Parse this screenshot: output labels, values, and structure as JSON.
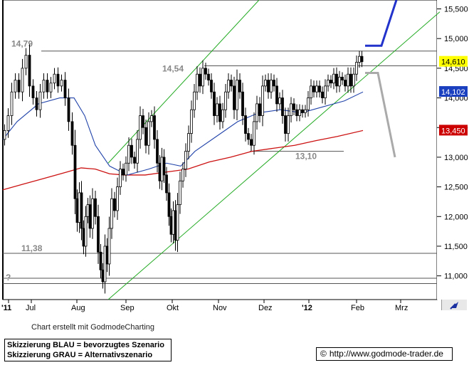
{
  "chart_data": {
    "type": "candlestick",
    "instrument": "",
    "x_labels": [
      "'11",
      "Jul",
      "Aug",
      "Sep",
      "Okt",
      "Nov",
      "Dez",
      "'12",
      "Feb",
      "Mrz"
    ],
    "y_ticks": [
      "15,500",
      "15,000",
      "14,500",
      "14,000",
      "13,500",
      "13,000",
      "12,500",
      "12,000",
      "11,500",
      "11,000"
    ],
    "ylim": [
      10.6,
      15.65
    ],
    "price_tags": [
      {
        "value": 14.61,
        "label": "14,610",
        "color": "#ffff00",
        "text_color": "#000000"
      },
      {
        "value": 14.102,
        "label": "14,102",
        "color": "#1a3fbf",
        "text_color": "#ffffff"
      },
      {
        "value": 13.45,
        "label": "13,450",
        "color": "#cc0000",
        "text_color": "#ffffff"
      }
    ],
    "horizontal_levels": [
      {
        "value": 14.79,
        "label": "14,79"
      },
      {
        "value": 14.54,
        "label": "14,54"
      },
      {
        "value": 13.1,
        "label": "13,10"
      },
      {
        "value": 11.38,
        "label": "11,38"
      },
      {
        "value": 10.96,
        "label": "?"
      },
      {
        "value": 10.87,
        "label": ""
      }
    ],
    "close_series": [
      {
        "d": 0,
        "v": 13.3
      },
      {
        "d": 5,
        "v": 13.45
      },
      {
        "d": 10,
        "v": 13.7
      },
      {
        "d": 15,
        "v": 14.1
      },
      {
        "d": 20,
        "v": 14.3
      },
      {
        "d": 25,
        "v": 14.1
      },
      {
        "d": 30,
        "v": 14.5
      },
      {
        "d": 35,
        "v": 14.72
      },
      {
        "d": 40,
        "v": 14.2
      },
      {
        "d": 45,
        "v": 14.0
      },
      {
        "d": 50,
        "v": 13.8
      },
      {
        "d": 55,
        "v": 14.1
      },
      {
        "d": 60,
        "v": 14.3
      },
      {
        "d": 65,
        "v": 14.1
      },
      {
        "d": 70,
        "v": 14.25
      },
      {
        "d": 75,
        "v": 14.4
      },
      {
        "d": 80,
        "v": 14.2
      },
      {
        "d": 85,
        "v": 14.3
      },
      {
        "d": 90,
        "v": 14.0
      },
      {
        "d": 95,
        "v": 13.6
      },
      {
        "d": 100,
        "v": 13.2
      },
      {
        "d": 103,
        "v": 12.3
      },
      {
        "d": 106,
        "v": 11.9
      },
      {
        "d": 109,
        "v": 12.4
      },
      {
        "d": 112,
        "v": 11.8
      },
      {
        "d": 115,
        "v": 11.5
      },
      {
        "d": 118,
        "v": 12.0
      },
      {
        "d": 121,
        "v": 12.2
      },
      {
        "d": 124,
        "v": 11.8
      },
      {
        "d": 128,
        "v": 12.3
      },
      {
        "d": 132,
        "v": 12.0
      },
      {
        "d": 136,
        "v": 11.4
      },
      {
        "d": 139,
        "v": 11.1
      },
      {
        "d": 142,
        "v": 10.9
      },
      {
        "d": 145,
        "v": 11.5
      },
      {
        "d": 148,
        "v": 11.2
      },
      {
        "d": 151,
        "v": 11.8
      },
      {
        "d": 155,
        "v": 12.3
      },
      {
        "d": 159,
        "v": 12.1
      },
      {
        "d": 163,
        "v": 12.5
      },
      {
        "d": 167,
        "v": 12.8
      },
      {
        "d": 171,
        "v": 12.7
      },
      {
        "d": 175,
        "v": 12.9
      },
      {
        "d": 179,
        "v": 13.2
      },
      {
        "d": 183,
        "v": 13.0
      },
      {
        "d": 187,
        "v": 12.9
      },
      {
        "d": 191,
        "v": 13.3
      },
      {
        "d": 195,
        "v": 13.7
      },
      {
        "d": 199,
        "v": 13.5
      },
      {
        "d": 203,
        "v": 13.2
      },
      {
        "d": 207,
        "v": 13.6
      },
      {
        "d": 211,
        "v": 13.7
      },
      {
        "d": 215,
        "v": 13.3
      },
      {
        "d": 219,
        "v": 12.9
      },
      {
        "d": 222,
        "v": 12.6
      },
      {
        "d": 225,
        "v": 13.0
      },
      {
        "d": 228,
        "v": 12.7
      },
      {
        "d": 232,
        "v": 12.4
      },
      {
        "d": 235,
        "v": 12.0
      },
      {
        "d": 238,
        "v": 11.7
      },
      {
        "d": 241,
        "v": 12.1
      },
      {
        "d": 244,
        "v": 11.6
      },
      {
        "d": 247,
        "v": 12.2
      },
      {
        "d": 251,
        "v": 12.6
      },
      {
        "d": 255,
        "v": 12.8
      },
      {
        "d": 259,
        "v": 13.1
      },
      {
        "d": 263,
        "v": 13.4
      },
      {
        "d": 267,
        "v": 13.8
      },
      {
        "d": 271,
        "v": 14.1
      },
      {
        "d": 275,
        "v": 14.4
      },
      {
        "d": 279,
        "v": 14.2
      },
      {
        "d": 283,
        "v": 14.5
      },
      {
        "d": 287,
        "v": 14.4
      },
      {
        "d": 291,
        "v": 14.3
      },
      {
        "d": 295,
        "v": 14.1
      },
      {
        "d": 299,
        "v": 13.7
      },
      {
        "d": 303,
        "v": 13.9
      },
      {
        "d": 307,
        "v": 13.6
      },
      {
        "d": 311,
        "v": 13.8
      },
      {
        "d": 315,
        "v": 14.1
      },
      {
        "d": 319,
        "v": 14.3
      },
      {
        "d": 323,
        "v": 14.2
      },
      {
        "d": 327,
        "v": 13.8
      },
      {
        "d": 331,
        "v": 14.3
      },
      {
        "d": 335,
        "v": 14.1
      },
      {
        "d": 339,
        "v": 13.7
      },
      {
        "d": 343,
        "v": 13.4
      },
      {
        "d": 347,
        "v": 13.3
      },
      {
        "d": 351,
        "v": 13.2
      },
      {
        "d": 355,
        "v": 13.6
      },
      {
        "d": 359,
        "v": 13.9
      },
      {
        "d": 363,
        "v": 13.7
      },
      {
        "d": 367,
        "v": 14.2
      },
      {
        "d": 371,
        "v": 14.3
      },
      {
        "d": 375,
        "v": 14.1
      },
      {
        "d": 379,
        "v": 14.3
      },
      {
        "d": 383,
        "v": 14.2
      },
      {
        "d": 387,
        "v": 13.9
      },
      {
        "d": 391,
        "v": 14.0
      },
      {
        "d": 395,
        "v": 13.7
      },
      {
        "d": 399,
        "v": 13.4
      },
      {
        "d": 403,
        "v": 13.7
      },
      {
        "d": 407,
        "v": 13.9
      },
      {
        "d": 411,
        "v": 13.8
      },
      {
        "d": 415,
        "v": 13.7
      },
      {
        "d": 419,
        "v": 13.8
      },
      {
        "d": 423,
        "v": 13.75
      },
      {
        "d": 427,
        "v": 13.8
      },
      {
        "d": 431,
        "v": 14.0
      },
      {
        "d": 435,
        "v": 14.2
      },
      {
        "d": 439,
        "v": 14.1
      },
      {
        "d": 443,
        "v": 14.2
      },
      {
        "d": 447,
        "v": 14.1
      },
      {
        "d": 451,
        "v": 14.0
      },
      {
        "d": 455,
        "v": 14.2
      },
      {
        "d": 459,
        "v": 14.3
      },
      {
        "d": 463,
        "v": 14.25
      },
      {
        "d": 467,
        "v": 14.4
      },
      {
        "d": 471,
        "v": 14.2
      },
      {
        "d": 475,
        "v": 14.35
      },
      {
        "d": 479,
        "v": 14.3
      },
      {
        "d": 483,
        "v": 14.2
      },
      {
        "d": 487,
        "v": 14.4
      },
      {
        "d": 491,
        "v": 14.2
      },
      {
        "d": 495,
        "v": 14.4
      },
      {
        "d": 499,
        "v": 14.6
      },
      {
        "d": 503,
        "v": 14.7
      },
      {
        "d": 506,
        "v": 14.61
      }
    ],
    "sma_blue": [
      {
        "d": 0,
        "v": 13.3
      },
      {
        "d": 20,
        "v": 13.6
      },
      {
        "d": 50,
        "v": 13.9
      },
      {
        "d": 80,
        "v": 14.0
      },
      {
        "d": 100,
        "v": 14.0
      },
      {
        "d": 115,
        "v": 13.7
      },
      {
        "d": 130,
        "v": 13.2
      },
      {
        "d": 150,
        "v": 12.85
      },
      {
        "d": 175,
        "v": 12.7
      },
      {
        "d": 205,
        "v": 12.8
      },
      {
        "d": 230,
        "v": 12.9
      },
      {
        "d": 250,
        "v": 12.85
      },
      {
        "d": 270,
        "v": 13.1
      },
      {
        "d": 300,
        "v": 13.35
      },
      {
        "d": 330,
        "v": 13.6
      },
      {
        "d": 360,
        "v": 13.75
      },
      {
        "d": 390,
        "v": 13.8
      },
      {
        "d": 420,
        "v": 13.75
      },
      {
        "d": 450,
        "v": 13.85
      },
      {
        "d": 480,
        "v": 13.95
      },
      {
        "d": 506,
        "v": 14.1
      }
    ],
    "sma_red": [
      {
        "d": 0,
        "v": 12.45
      },
      {
        "d": 30,
        "v": 12.55
      },
      {
        "d": 60,
        "v": 12.65
      },
      {
        "d": 90,
        "v": 12.75
      },
      {
        "d": 110,
        "v": 12.82
      },
      {
        "d": 130,
        "v": 12.8
      },
      {
        "d": 150,
        "v": 12.72
      },
      {
        "d": 170,
        "v": 12.7
      },
      {
        "d": 200,
        "v": 12.7
      },
      {
        "d": 230,
        "v": 12.75
      },
      {
        "d": 260,
        "v": 12.8
      },
      {
        "d": 290,
        "v": 12.92
      },
      {
        "d": 320,
        "v": 13.0
      },
      {
        "d": 350,
        "v": 13.1
      },
      {
        "d": 380,
        "v": 13.15
      },
      {
        "d": 410,
        "v": 13.2
      },
      {
        "d": 440,
        "v": 13.28
      },
      {
        "d": 470,
        "v": 13.35
      },
      {
        "d": 506,
        "v": 13.45
      }
    ],
    "scenario_blue": [
      {
        "d": 509,
        "v": 14.88
      },
      {
        "d": 532,
        "v": 14.88
      },
      {
        "d": 553,
        "v": 15.65
      }
    ],
    "scenario_grey": [
      {
        "d": 509,
        "v": 14.42
      },
      {
        "d": 527,
        "v": 14.42
      },
      {
        "d": 551,
        "v": 13.0
      }
    ],
    "trend_channel": [
      {
        "p1": {
          "d": 148,
          "v": 10.6
        },
        "p2": {
          "d": 614,
          "v": 15.45
        }
      },
      {
        "p1": {
          "d": 148,
          "v": 12.9
        },
        "p2": {
          "d": 360,
          "v": 15.65
        }
      }
    ]
  },
  "texts": {
    "credit": "Chart erstellt mit GodmodeCharting",
    "legend_blue": "Skizzierung BLAU = bevorzugtes Szenario",
    "legend_grey": "Skizzierung GRAU = Alternativszenario",
    "copyright_symbol": "©",
    "url": "http://www.godmode-trader.de"
  },
  "colors": {
    "candles": "#000000",
    "sma_blue": "#2244aa",
    "sma_red": "#cc1111",
    "scenario_blue": "#2233cc",
    "scenario_grey": "#aaaaaa",
    "trend": "#22aa22",
    "levels": "#555555",
    "level_labels": "#888888"
  }
}
